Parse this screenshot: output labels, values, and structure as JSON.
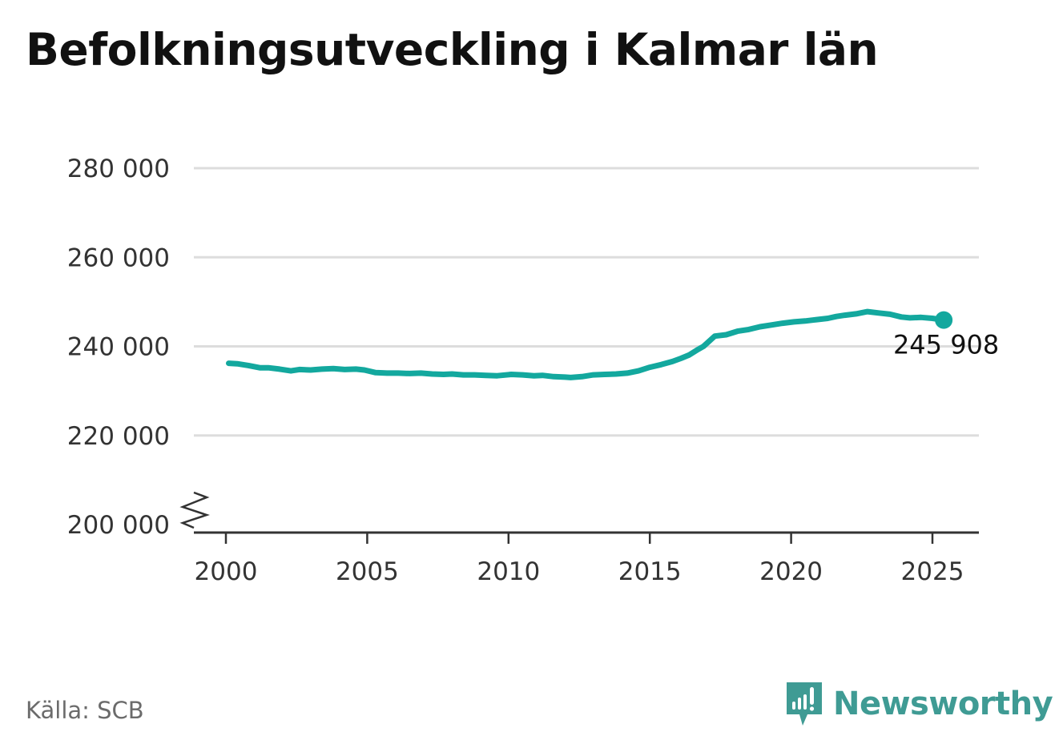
{
  "title": "Befolkningsutveckling i Kalmar län",
  "source": "Källa: SCB",
  "brand": {
    "name": "Newsworthy",
    "icon": "newsworthy-logo-icon",
    "color": "#3f9b94"
  },
  "colors": {
    "line": "#13a89e",
    "grid": "#dddddd",
    "axis": "#333333"
  },
  "chart_data": {
    "type": "line",
    "title": "Befolkningsutveckling i Kalmar län",
    "xlabel": "",
    "ylabel": "",
    "xlim": [
      1999,
      2026.5
    ],
    "ylim": [
      200000,
      280000
    ],
    "y_axis_break": true,
    "grid": "horizontal",
    "xticks": [
      2000,
      2005,
      2010,
      2015,
      2020,
      2025
    ],
    "xtick_labels": [
      "2000",
      "2005",
      "2010",
      "2015",
      "2020",
      "2025"
    ],
    "yticks": [
      200000,
      220000,
      240000,
      260000,
      280000
    ],
    "ytick_labels": [
      "200 000",
      "220 000",
      "240 000",
      "260 000",
      "280 000"
    ],
    "end_label": "245 908",
    "series": [
      {
        "x": [
          2000.1,
          2000.4,
          2000.8,
          2001.2,
          2001.5,
          2001.9,
          2002.3,
          2002.6,
          2003.0,
          2003.4,
          2003.8,
          2004.2,
          2004.6,
          2004.9,
          2005.3,
          2005.7,
          2006.1,
          2006.5,
          2006.9,
          2007.3,
          2007.7,
          2008.0,
          2008.4,
          2008.8,
          2009.2,
          2009.6,
          2010.1,
          2010.5,
          2010.9,
          2011.2,
          2011.6,
          2012.0,
          2012.2,
          2012.6,
          2013.0,
          2013.4,
          2013.8,
          2014.2,
          2014.6,
          2015.0,
          2015.4,
          2015.8,
          2016.1,
          2016.4,
          2016.7,
          2016.9,
          2017.3,
          2017.7,
          2018.1,
          2018.5,
          2018.9,
          2019.3,
          2019.7,
          2020.1,
          2020.5,
          2020.9,
          2021.3,
          2021.6,
          2021.9,
          2022.3,
          2022.7,
          2023.1,
          2023.5,
          2023.9,
          2024.2,
          2024.6,
          2025.0,
          2025.4
        ],
        "y": [
          236200,
          236100,
          235700,
          235200,
          235200,
          234900,
          234500,
          234800,
          234700,
          234900,
          235000,
          234800,
          234900,
          234700,
          234100,
          234000,
          234000,
          233900,
          234000,
          233800,
          233700,
          233800,
          233600,
          233600,
          233500,
          233400,
          233700,
          233600,
          233400,
          233500,
          233200,
          233100,
          233000,
          233200,
          233600,
          233700,
          233800,
          234000,
          234500,
          235300,
          235900,
          236600,
          237300,
          238100,
          239300,
          240000,
          242300,
          242600,
          243400,
          243800,
          244400,
          244800,
          245200,
          245500,
          245700,
          246000,
          246300,
          246700,
          247000,
          247300,
          247800,
          247500,
          247200,
          246600,
          246400,
          246500,
          246300,
          245908
        ]
      }
    ]
  }
}
